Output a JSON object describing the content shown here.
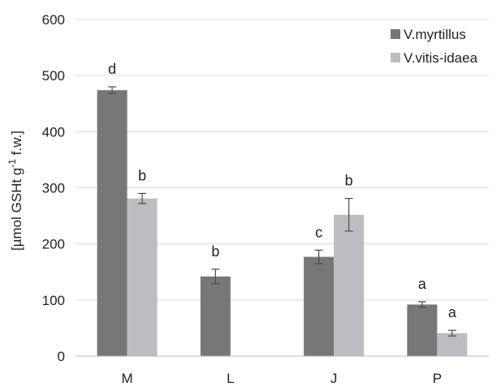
{
  "chart_data": {
    "type": "bar",
    "ylabel": "[µmol GSHt g",
    "ylabel_sup": "-1",
    "ylabel_tail": " f.w.]",
    "ylim": [
      0,
      600
    ],
    "yticks": [
      "0",
      "100",
      "200",
      "300",
      "400",
      "500",
      "600"
    ],
    "categories": [
      "M",
      "L",
      "J",
      "P"
    ],
    "grid": true,
    "legend_position": "top-right",
    "series": [
      {
        "name": "V.myrtillus",
        "color": "#77777a",
        "values": [
          474,
          142,
          177,
          92
        ],
        "errors": [
          6,
          13,
          12,
          5
        ],
        "letters": [
          "d",
          "b",
          "c",
          "a"
        ]
      },
      {
        "name": "V.vitis-idaea",
        "color": "#bcbdc0",
        "values": [
          281,
          0,
          252,
          41
        ],
        "errors": [
          9,
          0,
          29,
          5
        ],
        "letters": [
          "b",
          "",
          "b",
          "a"
        ]
      }
    ]
  }
}
